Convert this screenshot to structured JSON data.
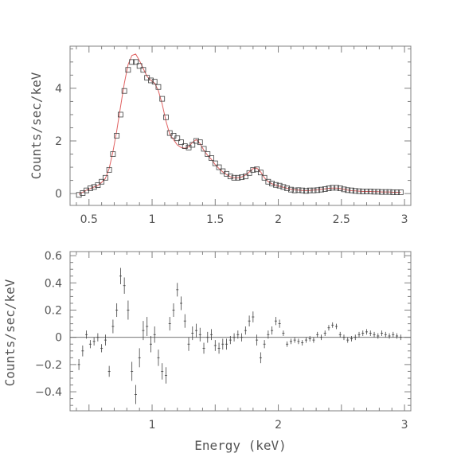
{
  "colors": {
    "axes": "#808080",
    "data": "#404040",
    "model": "#e06060",
    "text": "#555555"
  },
  "chart_data": [
    {
      "type": "scatter",
      "ylabel": "Counts/sec/keV",
      "xlabel": "",
      "xlim": [
        0.35,
        3.05
      ],
      "ylim": [
        -0.45,
        5.6
      ],
      "xticks": [
        0.5,
        1,
        1.5,
        2,
        2.5,
        3
      ],
      "xtick_labels": [
        "0.5",
        "1",
        "1.5",
        "2",
        "2.5",
        "3"
      ],
      "yticks": [
        0,
        2,
        4
      ],
      "ytick_labels": [
        "0",
        "2",
        "4"
      ],
      "marker": "square",
      "x": [
        0.42,
        0.45,
        0.48,
        0.51,
        0.54,
        0.57,
        0.6,
        0.63,
        0.66,
        0.69,
        0.72,
        0.75,
        0.78,
        0.81,
        0.84,
        0.87,
        0.9,
        0.93,
        0.96,
        0.99,
        1.02,
        1.05,
        1.08,
        1.11,
        1.14,
        1.17,
        1.2,
        1.23,
        1.26,
        1.29,
        1.32,
        1.35,
        1.38,
        1.41,
        1.44,
        1.47,
        1.5,
        1.53,
        1.56,
        1.59,
        1.62,
        1.65,
        1.68,
        1.71,
        1.74,
        1.77,
        1.8,
        1.83,
        1.86,
        1.89,
        1.92,
        1.95,
        1.98,
        2.01,
        2.04,
        2.07,
        2.1,
        2.13,
        2.16,
        2.19,
        2.22,
        2.25,
        2.28,
        2.31,
        2.34,
        2.37,
        2.4,
        2.43,
        2.46,
        2.49,
        2.52,
        2.55,
        2.58,
        2.61,
        2.64,
        2.67,
        2.7,
        2.73,
        2.76,
        2.79,
        2.82,
        2.85,
        2.88,
        2.91,
        2.94,
        2.97
      ],
      "y": [
        -0.05,
        0.02,
        0.12,
        0.2,
        0.25,
        0.32,
        0.45,
        0.6,
        0.9,
        1.5,
        2.2,
        3.0,
        3.9,
        4.7,
        5.0,
        5.0,
        4.85,
        4.7,
        4.4,
        4.3,
        4.25,
        4.05,
        3.6,
        2.9,
        2.3,
        2.2,
        2.1,
        1.95,
        1.8,
        1.75,
        1.85,
        2.0,
        1.95,
        1.7,
        1.5,
        1.35,
        1.15,
        1.0,
        0.85,
        0.75,
        0.65,
        0.6,
        0.6,
        0.62,
        0.65,
        0.78,
        0.9,
        0.92,
        0.8,
        0.6,
        0.45,
        0.38,
        0.33,
        0.3,
        0.25,
        0.2,
        0.15,
        0.12,
        0.13,
        0.12,
        0.1,
        0.12,
        0.12,
        0.13,
        0.15,
        0.17,
        0.2,
        0.22,
        0.22,
        0.2,
        0.16,
        0.13,
        0.12,
        0.1,
        0.09,
        0.08,
        0.08,
        0.08,
        0.07,
        0.07,
        0.06,
        0.06,
        0.06,
        0.05,
        0.05,
        0.05
      ],
      "model": [
        -0.03,
        0.05,
        0.13,
        0.19,
        0.25,
        0.31,
        0.42,
        0.58,
        0.95,
        1.6,
        2.4,
        3.3,
        4.2,
        4.9,
        5.25,
        5.3,
        5.05,
        4.75,
        4.45,
        4.3,
        4.2,
        3.9,
        3.4,
        2.75,
        2.25,
        2.05,
        1.85,
        1.75,
        1.72,
        1.78,
        1.95,
        2.05,
        1.9,
        1.65,
        1.45,
        1.3,
        1.1,
        0.95,
        0.82,
        0.72,
        0.64,
        0.6,
        0.6,
        0.63,
        0.7,
        0.82,
        0.95,
        0.97,
        0.82,
        0.6,
        0.45,
        0.37,
        0.32,
        0.28,
        0.24,
        0.2,
        0.16,
        0.14,
        0.13,
        0.12,
        0.11,
        0.12,
        0.13,
        0.14,
        0.16,
        0.18,
        0.2,
        0.21,
        0.21,
        0.19,
        0.16,
        0.13,
        0.11,
        0.1,
        0.09,
        0.08,
        0.08,
        0.08,
        0.07,
        0.07,
        0.06,
        0.06,
        0.06,
        0.05,
        0.05,
        0.05
      ]
    },
    {
      "type": "scatter",
      "ylabel": "Counts/sec/keV",
      "xlabel": "Energy (keV)",
      "xlim": [
        0.35,
        3.05
      ],
      "ylim": [
        -0.54,
        0.63
      ],
      "xticks": [
        1,
        2,
        3
      ],
      "xtick_labels": [
        "1",
        "2",
        "3"
      ],
      "yticks": [
        -0.4,
        -0.2,
        0,
        0.2,
        0.4,
        0.6
      ],
      "ytick_labels": [
        "−0.4",
        "−0.2",
        "0",
        "0.2",
        "0.4",
        "0.6"
      ],
      "marker": "errorbar",
      "x": [
        0.42,
        0.45,
        0.48,
        0.51,
        0.54,
        0.57,
        0.6,
        0.63,
        0.66,
        0.69,
        0.72,
        0.75,
        0.78,
        0.81,
        0.84,
        0.87,
        0.9,
        0.93,
        0.96,
        0.99,
        1.02,
        1.05,
        1.08,
        1.11,
        1.14,
        1.17,
        1.2,
        1.23,
        1.26,
        1.29,
        1.32,
        1.35,
        1.38,
        1.41,
        1.44,
        1.47,
        1.5,
        1.53,
        1.56,
        1.59,
        1.62,
        1.65,
        1.68,
        1.71,
        1.74,
        1.77,
        1.8,
        1.83,
        1.86,
        1.89,
        1.92,
        1.95,
        1.98,
        2.01,
        2.04,
        2.07,
        2.1,
        2.13,
        2.16,
        2.19,
        2.22,
        2.25,
        2.28,
        2.31,
        2.34,
        2.37,
        2.4,
        2.43,
        2.46,
        2.49,
        2.52,
        2.55,
        2.58,
        2.61,
        2.64,
        2.67,
        2.7,
        2.73,
        2.76,
        2.79,
        2.82,
        2.85,
        2.88,
        2.91,
        2.94,
        2.97
      ],
      "y": [
        -0.2,
        -0.1,
        0.02,
        -0.05,
        -0.03,
        0.0,
        -0.08,
        -0.02,
        -0.25,
        0.08,
        0.2,
        0.45,
        0.38,
        0.2,
        -0.25,
        -0.42,
        -0.15,
        0.05,
        0.08,
        -0.05,
        0.02,
        -0.15,
        -0.25,
        -0.28,
        0.1,
        0.2,
        0.35,
        0.25,
        0.12,
        -0.05,
        0.03,
        0.05,
        0.02,
        -0.08,
        0.0,
        0.02,
        -0.06,
        -0.08,
        -0.05,
        -0.05,
        -0.02,
        0.0,
        0.02,
        0.0,
        0.05,
        0.12,
        0.15,
        -0.02,
        -0.15,
        -0.05,
        0.02,
        0.05,
        0.12,
        0.1,
        0.03,
        -0.05,
        -0.03,
        -0.02,
        -0.03,
        -0.04,
        -0.02,
        -0.01,
        -0.02,
        0.02,
        0.0,
        0.03,
        0.07,
        0.09,
        0.08,
        0.02,
        0.0,
        -0.02,
        -0.01,
        0.0,
        0.02,
        0.03,
        0.04,
        0.03,
        0.02,
        0.01,
        0.03,
        0.02,
        0.01,
        0.02,
        0.01,
        0.0
      ],
      "err": [
        0.04,
        0.04,
        0.03,
        0.03,
        0.03,
        0.03,
        0.03,
        0.04,
        0.04,
        0.05,
        0.05,
        0.06,
        0.06,
        0.07,
        0.07,
        0.07,
        0.07,
        0.07,
        0.07,
        0.06,
        0.06,
        0.06,
        0.06,
        0.06,
        0.05,
        0.05,
        0.05,
        0.05,
        0.05,
        0.05,
        0.05,
        0.05,
        0.05,
        0.04,
        0.04,
        0.04,
        0.04,
        0.04,
        0.04,
        0.04,
        0.03,
        0.03,
        0.03,
        0.03,
        0.03,
        0.04,
        0.04,
        0.04,
        0.04,
        0.03,
        0.03,
        0.03,
        0.03,
        0.03,
        0.02,
        0.02,
        0.02,
        0.02,
        0.02,
        0.02,
        0.02,
        0.02,
        0.02,
        0.02,
        0.02,
        0.02,
        0.02,
        0.02,
        0.02,
        0.02,
        0.02,
        0.02,
        0.02,
        0.02,
        0.02,
        0.02,
        0.02,
        0.02,
        0.02,
        0.02,
        0.02,
        0.02,
        0.02,
        0.02,
        0.02,
        0.02
      ]
    }
  ]
}
